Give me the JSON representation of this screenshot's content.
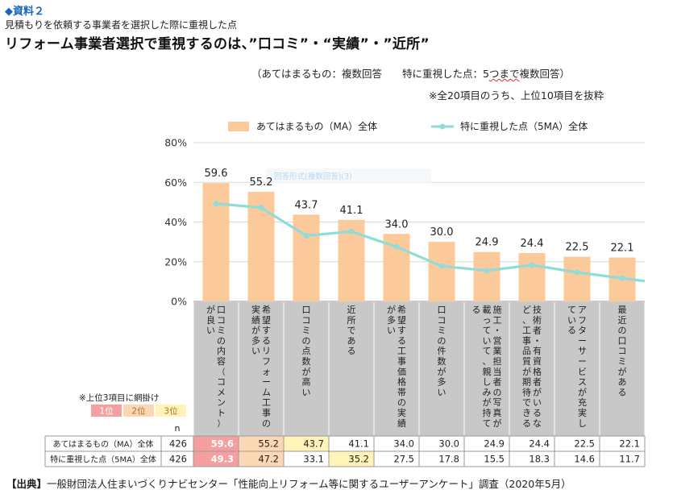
{
  "header": {
    "tag": "◆資料２",
    "subtitle": "見積もりを依頼する事業者を選択した際に重視した点",
    "title": "リフォーム事業者選択で重視するのは、”口コミ”・“実績”・”近所”",
    "answer_note_a": "（あてはまるもの：複数回答　　特に重視した点：5",
    "answer_note_b": "つまで",
    "answer_note_c": "複数回答）",
    "items_note": "※全20項目のうち、上位10項目を抜粋"
  },
  "rank_legend": {
    "note": "※上位3項目に網掛け",
    "ranks": [
      "1位",
      "2位",
      "3位"
    ],
    "colors": [
      "#f4a0a0",
      "#fbd7b4",
      "#fff3b8"
    ]
  },
  "colors": {
    "bar": "#fcc99b",
    "line": "#8fdcd8",
    "grid": "#d9d9d9",
    "label_bg": "#c8c8c8",
    "overlay_text": "#b6d6ee"
  },
  "overlay_text": "回答形式(複数回答)(3)",
  "chart_data": {
    "type": "bar",
    "ylim": [
      0,
      80
    ],
    "yticks": [
      "0%",
      "20%",
      "40%",
      "60%",
      "80%"
    ],
    "grid": true,
    "legend_position": "top",
    "categories": [
      "口コミの内容（コメント）が良い",
      "希望するリフォーム工事の実績が多い",
      "口コミの点数が高い",
      "近所である",
      "希望する工事価格帯の実績が多い",
      "口コミの件数が多い",
      "施工・営業担当者の写真が載っていて、親しみが持てる",
      "技術者・有資格者がいるなど、工事品質が期待できる",
      "アフターサービスが充実している",
      "最近の口コミがある"
    ],
    "series": [
      {
        "name": "あてはまるもの（MA）全体",
        "kind": "bar",
        "values": [
          59.6,
          55.2,
          43.7,
          41.1,
          34.0,
          30.0,
          24.9,
          24.4,
          22.5,
          22.1
        ],
        "labels": [
          "59.6",
          "55.2",
          "43.7",
          "41.1",
          "34.0",
          "30.0",
          "24.9",
          "24.4",
          "22.5",
          "22.1"
        ],
        "n": "426",
        "rank_levels": [
          1,
          2,
          3,
          0,
          0,
          0,
          0,
          0,
          0,
          0
        ]
      },
      {
        "name": "特に重視した点（5MA）全体",
        "kind": "line",
        "values": [
          49.3,
          47.2,
          33.1,
          35.2,
          27.5,
          17.8,
          15.5,
          18.3,
          14.6,
          11.7
        ],
        "labels": [
          "49.3",
          "47.2",
          "33.1",
          "35.2",
          "27.5",
          "17.8",
          "15.5",
          "18.3",
          "14.6",
          "11.7"
        ],
        "n": "426",
        "rank_levels": [
          1,
          2,
          0,
          3,
          0,
          0,
          0,
          0,
          0,
          0
        ]
      }
    ],
    "table_n_header": "n"
  },
  "source": {
    "label": "【出典】",
    "text": "一般財団法人住まいづくりナビセンター「性能向上リフォーム等に関するユーザーアンケート」調査（2020年5月）"
  }
}
